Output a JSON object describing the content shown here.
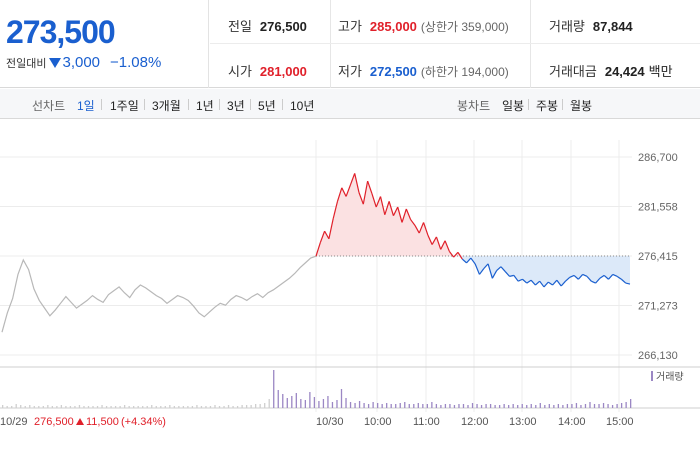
{
  "quote": {
    "price": "273,500",
    "change_label": "전일대비",
    "change": "3,000",
    "change_pct": "−1.08%",
    "stats": {
      "prev_close": {
        "label": "전일",
        "value": "276,500"
      },
      "high": {
        "label": "고가",
        "value": "285,000",
        "sub": "(상한가 359,000)"
      },
      "volume": {
        "label": "거래량",
        "value": "87,844"
      },
      "open": {
        "label": "시가",
        "value": "281,000"
      },
      "low": {
        "label": "저가",
        "value": "272,500",
        "sub": "(하한가 194,000)"
      },
      "amount": {
        "label": "거래대금",
        "value": "24,424",
        "unit": "백만"
      }
    }
  },
  "tabs": {
    "line_label": "선차트",
    "line_periods": [
      "1일",
      "1주일",
      "3개월",
      "1년",
      "3년",
      "5년",
      "10년"
    ],
    "active": "1일",
    "candle_label": "봉차트",
    "candle_periods": [
      "일봉",
      "주봉",
      "월봉"
    ]
  },
  "colors": {
    "up": "#e0202a",
    "down": "#1a5fcf",
    "prev_day": "#b8b8b8",
    "volume": "#9b87c4",
    "up_fill": "#fbe1e2",
    "down_fill": "#dce9f9"
  },
  "chart_data": {
    "type": "line",
    "y_ticks": [
      "286,700",
      "281,558",
      "276,415",
      "271,273",
      "266,130"
    ],
    "ylim": [
      266130,
      286700
    ],
    "baseline": 276415,
    "x_ticks": [
      "10/29",
      "10/30",
      "10:00",
      "11:00",
      "12:00",
      "13:00",
      "14:00",
      "15:00"
    ],
    "prev_day_info": {
      "date": "10/29",
      "close": "276,500",
      "change": "11,500",
      "change_pct": "(+4.34%)"
    },
    "volume_legend": "거래량",
    "series": [
      {
        "name": "10/29",
        "values": [
          268500,
          270500,
          272000,
          274500,
          276000,
          275000,
          273000,
          271800,
          271000,
          270200,
          270800,
          271500,
          272200,
          271600,
          271000,
          271400,
          271800,
          272300,
          271900,
          271600,
          272400,
          272800,
          273200,
          272600,
          272100,
          272900,
          273400,
          273100,
          272700,
          272300,
          272000,
          271500,
          271900,
          272300,
          272100,
          271800,
          271200,
          270500,
          270100,
          270600,
          271100,
          271500,
          271300,
          271900,
          272300,
          272100,
          271800,
          272200,
          272500,
          272100,
          272600,
          272900,
          273300,
          273700,
          274100,
          274600,
          275200,
          275700,
          276200,
          276400
        ]
      },
      {
        "name": "10/30",
        "values": [
          276400,
          277800,
          279000,
          278200,
          280300,
          282100,
          283500,
          282600,
          283800,
          285000,
          283000,
          281800,
          284200,
          282900,
          281500,
          282600,
          280700,
          282100,
          280600,
          281500,
          279900,
          281300,
          280200,
          279600,
          278800,
          279900,
          278600,
          277600,
          278400,
          277100,
          278000,
          276900,
          276300,
          276800,
          276100,
          275700,
          276200,
          275600,
          274500,
          275100,
          275600,
          274100,
          274900,
          275300,
          274800,
          274300,
          274400,
          273800,
          274000,
          273600,
          273900,
          273400,
          273800,
          273200,
          273700,
          273400,
          273900,
          273300,
          273800,
          274200,
          274400,
          274000,
          274500,
          274300,
          273800,
          273600,
          274100,
          274400,
          274000,
          274500,
          274300,
          274000,
          273600,
          273500
        ]
      }
    ],
    "volume": [
      3,
      2,
      2,
      4,
      3,
      2,
      3,
      2,
      2,
      2,
      3,
      2,
      2,
      3,
      2,
      2,
      2,
      3,
      2,
      2,
      2,
      2,
      3,
      2,
      2,
      2,
      2,
      3,
      2,
      2,
      2,
      2,
      2,
      3,
      2,
      2,
      2,
      3,
      2,
      2,
      2,
      2,
      2,
      3,
      2,
      2,
      2,
      3,
      2,
      2,
      3,
      2,
      2,
      3,
      3,
      3,
      4,
      4,
      5,
      9,
      38,
      18,
      14,
      10,
      12,
      15,
      9,
      8,
      16,
      11,
      7,
      9,
      12,
      6,
      8,
      19,
      10,
      6,
      5,
      7,
      5,
      4,
      6,
      5,
      4,
      5,
      4,
      4,
      5,
      6,
      4,
      4,
      5,
      4,
      4,
      6,
      4,
      3,
      4,
      4,
      3,
      4,
      4,
      3,
      5,
      4,
      3,
      4,
      4,
      3,
      3,
      4,
      3,
      4,
      3,
      4,
      3,
      4,
      3,
      5,
      3,
      4,
      3,
      4,
      3,
      4,
      4,
      5,
      3,
      4,
      6,
      4,
      4,
      5,
      4,
      3,
      4,
      5,
      6,
      9
    ]
  }
}
